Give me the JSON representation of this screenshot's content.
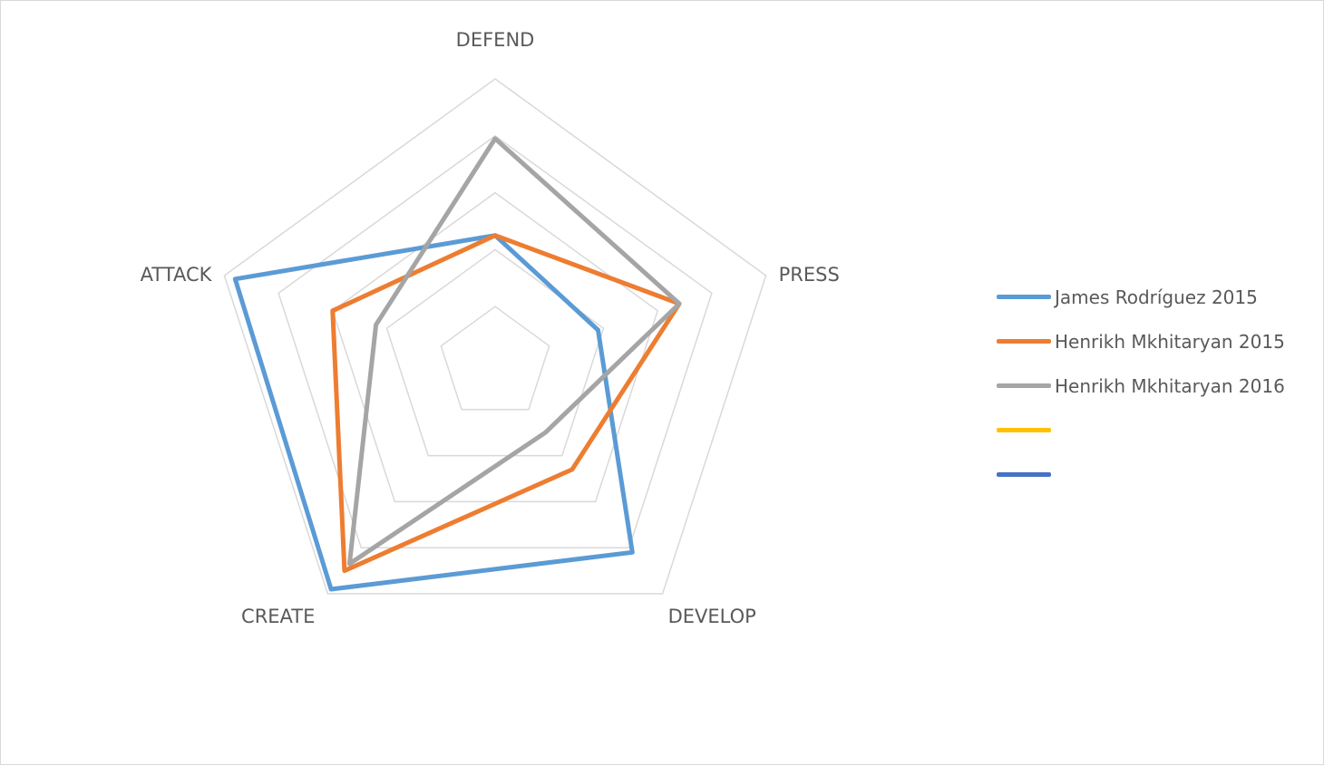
{
  "chart_data": {
    "type": "radar",
    "axes": [
      "DEFEND",
      "PRESS",
      "DEVELOP",
      "CREATE",
      "ATTACK"
    ],
    "rmax": 100,
    "rings": [
      20,
      40,
      60,
      80,
      100
    ],
    "gridlines": true,
    "legend_position": "right",
    "series": [
      {
        "name": "James Rodríguez 2015",
        "color": "#5b9bd5",
        "values": [
          45,
          38,
          82,
          98,
          96
        ]
      },
      {
        "name": "Henrikh Mkhitaryan 2015",
        "color": "#ed7d31",
        "values": [
          45,
          68,
          46,
          90,
          60
        ]
      },
      {
        "name": "Henrikh Mkhitaryan 2016",
        "color": "#a5a5a5",
        "values": [
          79,
          68,
          30,
          87,
          44
        ]
      },
      {
        "name": "",
        "color": "#ffc000",
        "values": []
      },
      {
        "name": "",
        "color": "#4472c4",
        "values": []
      }
    ]
  }
}
